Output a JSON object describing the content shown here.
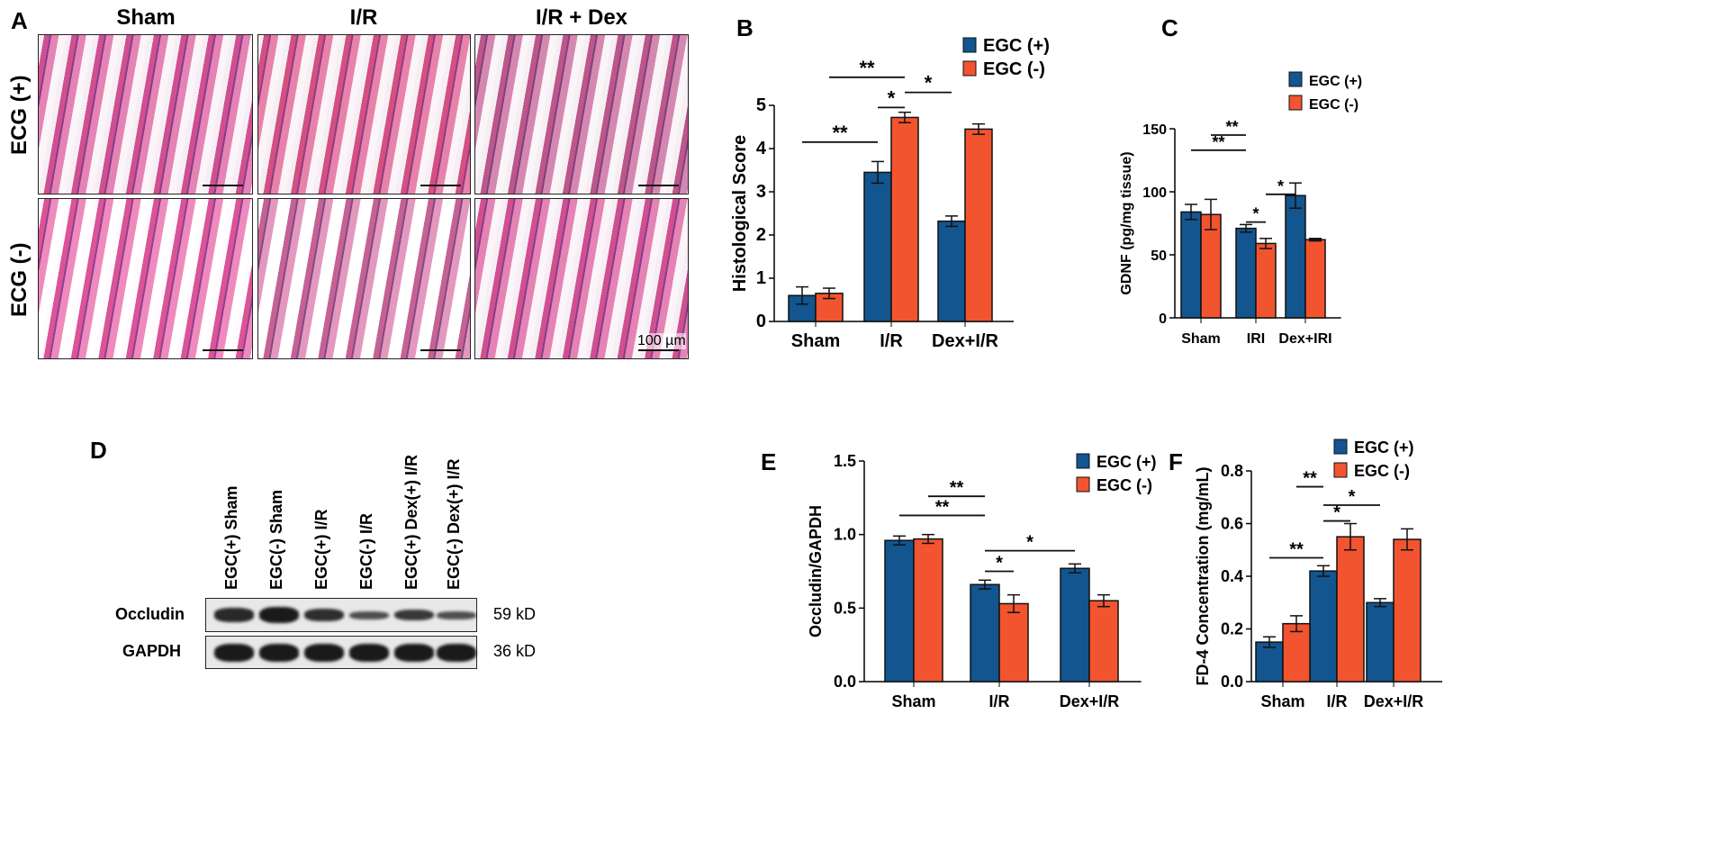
{
  "panelA": {
    "label": "A",
    "columns": [
      "Sham",
      "I/R",
      "I/R + Dex"
    ],
    "rows": [
      "ECG (+)",
      "ECG (-)"
    ],
    "scale_bar": "100 µm"
  },
  "panelD": {
    "label": "D",
    "lanes": [
      "EGC(+) Sham",
      "EGC(-) Sham",
      "EGC(+) I/R",
      "EGC(-) I/R",
      "EGC(+) Dex(+) I/R",
      "EGC(-) Dex(+) I/R"
    ],
    "rows": [
      {
        "name": "Occludin",
        "size": "59 kD",
        "intensity": [
          0.85,
          1.0,
          0.8,
          0.5,
          0.7,
          0.5
        ]
      },
      {
        "name": "GAPDH",
        "size": "36 kD",
        "intensity": [
          1,
          1,
          1,
          1,
          1,
          1
        ]
      }
    ]
  },
  "colors": {
    "egc_plus": "#12558f",
    "egc_minus": "#f25430"
  },
  "chart_data": [
    {
      "id": "B",
      "label": "B",
      "type": "bar",
      "ylabel": "Histological Score",
      "ylim": [
        0,
        5
      ],
      "yticks": [
        "0",
        "1",
        "2",
        "3",
        "4",
        "5"
      ],
      "categories": [
        "Sham",
        "I/R",
        "Dex+I/R"
      ],
      "series": [
        {
          "name": "EGC (+)",
          "values": [
            0.6,
            3.45,
            2.32
          ],
          "errors": [
            0.2,
            0.25,
            0.12
          ]
        },
        {
          "name": "EGC (-)",
          "values": [
            0.65,
            4.72,
            4.45
          ],
          "errors": [
            0.12,
            0.12,
            0.12
          ]
        }
      ],
      "annotations": [
        {
          "text": "**",
          "from": [
            0,
            0
          ],
          "to": [
            1,
            0
          ],
          "y": 4.15
        },
        {
          "text": "*",
          "from": [
            1,
            0
          ],
          "to": [
            1,
            1
          ],
          "y": 4.95
        },
        {
          "text": "*",
          "from": [
            1,
            1
          ],
          "to": [
            2,
            0
          ],
          "y": 5.3
        },
        {
          "text": "**",
          "from": [
            0,
            1
          ],
          "to": [
            1,
            1
          ],
          "y": 5.65
        }
      ],
      "legend": "top-right"
    },
    {
      "id": "C",
      "label": "C",
      "type": "bar",
      "ylabel": "GDNF (pg/mg tissue)",
      "ylim": [
        0,
        150
      ],
      "yticks": [
        "0",
        "50",
        "100",
        "150"
      ],
      "categories": [
        "Sham",
        "IRI",
        "Dex+IRI"
      ],
      "series": [
        {
          "name": "EGC (+)",
          "values": [
            84,
            71,
            97
          ],
          "errors": [
            6,
            3,
            10
          ]
        },
        {
          "name": "EGC (-)",
          "values": [
            82,
            59,
            62
          ],
          "errors": [
            12,
            4,
            1
          ]
        }
      ],
      "annotations": [
        {
          "text": "*",
          "from": [
            1,
            0
          ],
          "to": [
            1,
            1
          ],
          "y": 76
        },
        {
          "text": "*",
          "from": [
            1,
            1
          ],
          "to": [
            2,
            0
          ],
          "y": 98
        },
        {
          "text": "**",
          "from": [
            0,
            0
          ],
          "to": [
            1,
            0
          ],
          "y": 133
        },
        {
          "text": "**",
          "from": [
            0,
            1
          ],
          "to": [
            1,
            0
          ],
          "y": 145
        }
      ],
      "legend": "top-right"
    },
    {
      "id": "E",
      "label": "E",
      "type": "bar",
      "ylabel": "Occludin/GAPDH",
      "ylim": [
        0,
        1.5
      ],
      "yticks": [
        "0.0",
        "0.5",
        "1.0",
        "1.5"
      ],
      "categories": [
        "Sham",
        "I/R",
        "Dex+I/R"
      ],
      "series": [
        {
          "name": "EGC (+)",
          "values": [
            0.96,
            0.66,
            0.77
          ],
          "errors": [
            0.03,
            0.03,
            0.03
          ]
        },
        {
          "name": "EGC (-)",
          "values": [
            0.97,
            0.53,
            0.55
          ],
          "errors": [
            0.03,
            0.06,
            0.04
          ]
        }
      ],
      "annotations": [
        {
          "text": "*",
          "from": [
            1,
            0
          ],
          "to": [
            1,
            1
          ],
          "y": 0.75
        },
        {
          "text": "*",
          "from": [
            1,
            0
          ],
          "to": [
            2,
            0
          ],
          "y": 0.89
        },
        {
          "text": "**",
          "from": [
            0,
            0
          ],
          "to": [
            1,
            0
          ],
          "y": 1.13
        },
        {
          "text": "**",
          "from": [
            0,
            1
          ],
          "to": [
            1,
            0
          ],
          "y": 1.26
        }
      ],
      "legend": "top-right"
    },
    {
      "id": "F",
      "label": "F",
      "type": "bar",
      "ylabel": "FD-4 Concentration (mg/mL)",
      "ylim": [
        0,
        0.8
      ],
      "yticks": [
        "0.0",
        "0.2",
        "0.4",
        "0.6",
        "0.8"
      ],
      "categories": [
        "Sham",
        "I/R",
        "Dex+I/R"
      ],
      "series": [
        {
          "name": "EGC (+)",
          "values": [
            0.15,
            0.42,
            0.3
          ],
          "errors": [
            0.02,
            0.02,
            0.015
          ]
        },
        {
          "name": "EGC (-)",
          "values": [
            0.22,
            0.55,
            0.54
          ],
          "errors": [
            0.03,
            0.05,
            0.04
          ]
        }
      ],
      "annotations": [
        {
          "text": "**",
          "from": [
            0,
            0
          ],
          "to": [
            1,
            0
          ],
          "y": 0.47
        },
        {
          "text": "*",
          "from": [
            1,
            0
          ],
          "to": [
            1,
            1
          ],
          "y": 0.61
        },
        {
          "text": "*",
          "from": [
            1,
            0
          ],
          "to": [
            2,
            0
          ],
          "y": 0.67
        },
        {
          "text": "**",
          "from": [
            0,
            1
          ],
          "to": [
            1,
            0
          ],
          "y": 0.74
        }
      ],
      "legend": "top-right"
    }
  ]
}
